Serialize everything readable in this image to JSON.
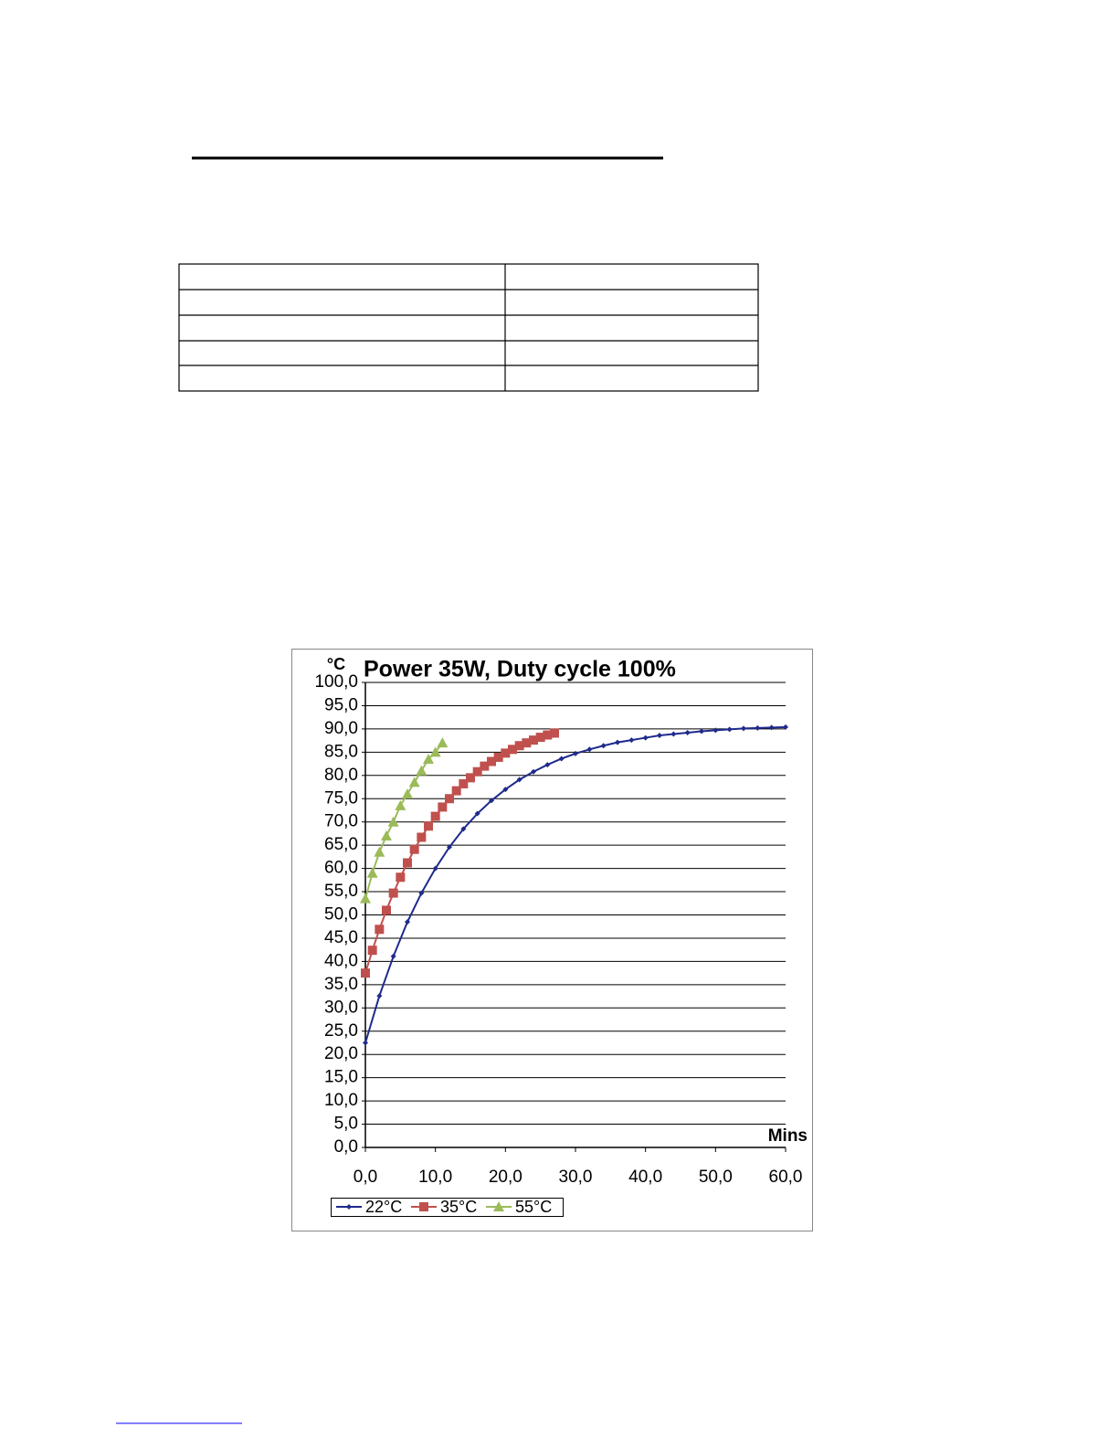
{
  "chart_data": {
    "type": "line",
    "title": "Power 35W, Duty cycle 100%",
    "y_label": "°C",
    "x_label": "Mins",
    "xlim": [
      0,
      60
    ],
    "ylim": [
      0,
      100
    ],
    "xticks": [
      {
        "value": 0,
        "label": "0,0"
      },
      {
        "value": 10,
        "label": "10,0"
      },
      {
        "value": 20,
        "label": "20,0"
      },
      {
        "value": 30,
        "label": "30,0"
      },
      {
        "value": 40,
        "label": "40,0"
      },
      {
        "value": 50,
        "label": "50,0"
      },
      {
        "value": 60,
        "label": "60,0"
      }
    ],
    "yticks": [
      {
        "value": 0,
        "label": "0,0"
      },
      {
        "value": 5,
        "label": "5,0"
      },
      {
        "value": 10,
        "label": "10,0"
      },
      {
        "value": 15,
        "label": "15,0"
      },
      {
        "value": 20,
        "label": "20,0"
      },
      {
        "value": 25,
        "label": "25,0"
      },
      {
        "value": 30,
        "label": "30,0"
      },
      {
        "value": 35,
        "label": "35,0"
      },
      {
        "value": 40,
        "label": "40,0"
      },
      {
        "value": 45,
        "label": "45,0"
      },
      {
        "value": 50,
        "label": "50,0"
      },
      {
        "value": 55,
        "label": "55,0"
      },
      {
        "value": 60,
        "label": "60,0"
      },
      {
        "value": 65,
        "label": "65,0"
      },
      {
        "value": 70,
        "label": "70,0"
      },
      {
        "value": 75,
        "label": "75,0"
      },
      {
        "value": 80,
        "label": "80,0"
      },
      {
        "value": 85,
        "label": "85,0"
      },
      {
        "value": 90,
        "label": "90,0"
      },
      {
        "value": 95,
        "label": "95,0"
      },
      {
        "value": 100,
        "label": "100,0"
      }
    ],
    "grid": true,
    "legend": "bottom",
    "series": [
      {
        "name": "22°C",
        "color": "#1f2a8c",
        "marker": "diamond",
        "x": [
          0,
          2,
          4,
          6,
          8,
          10,
          12,
          14,
          16,
          18,
          20,
          22,
          24,
          26,
          28,
          30,
          32,
          34,
          36,
          38,
          40,
          42,
          44,
          46,
          48,
          50,
          52,
          54,
          56,
          58,
          60
        ],
        "values": [
          22.5,
          32.6,
          41.1,
          48.5,
          54.7,
          60.0,
          64.6,
          68.5,
          71.8,
          74.6,
          77.0,
          79.1,
          80.8,
          82.3,
          83.6,
          84.7,
          85.6,
          86.4,
          87.1,
          87.6,
          88.1,
          88.6,
          88.9,
          89.2,
          89.5,
          89.7,
          89.9,
          90.1,
          90.2,
          90.3,
          90.4
        ]
      },
      {
        "name": "35°C",
        "color": "#c0504d",
        "marker": "square",
        "x": [
          0,
          1,
          2,
          3,
          4,
          5,
          6,
          7,
          8,
          9,
          10,
          11,
          12,
          13,
          14,
          15,
          16,
          17,
          18,
          19,
          20,
          21,
          22,
          23,
          24,
          25,
          26,
          27
        ],
        "values": [
          37.5,
          42.4,
          46.9,
          51.0,
          54.7,
          58.1,
          61.2,
          64.1,
          66.7,
          69.1,
          71.2,
          73.2,
          75.0,
          76.7,
          78.2,
          79.5,
          80.8,
          82.0,
          83.0,
          83.9,
          84.8,
          85.6,
          86.4,
          87.0,
          87.6,
          88.2,
          88.7,
          89.1
        ]
      },
      {
        "name": "55°C",
        "color": "#9bbb59",
        "marker": "triangle",
        "x": [
          0,
          1,
          2,
          3,
          4,
          5,
          6,
          7,
          8,
          9,
          10,
          11
        ],
        "values": [
          53.5,
          59.0,
          63.5,
          67.0,
          70.0,
          73.5,
          76.0,
          78.5,
          81.0,
          83.5,
          85.0,
          87.0
        ]
      }
    ]
  }
}
